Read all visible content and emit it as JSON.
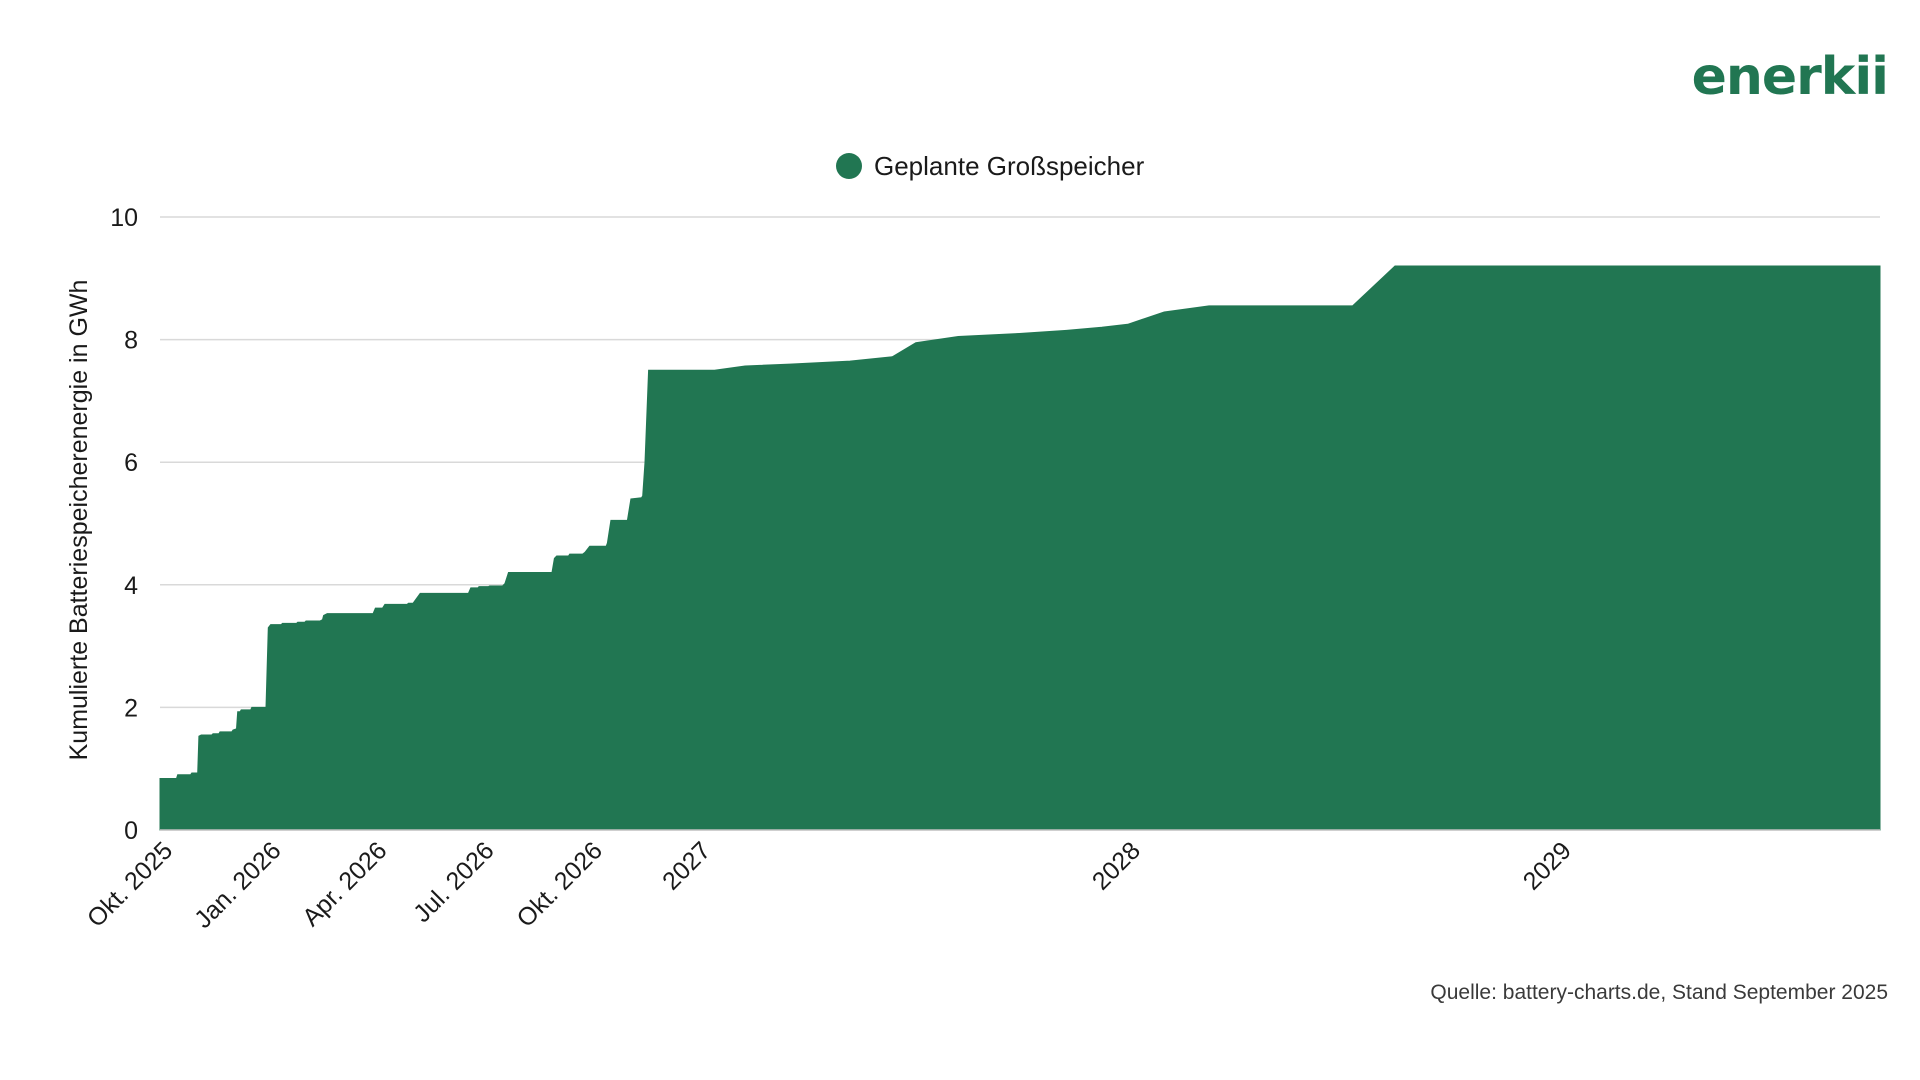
{
  "brand": {
    "logo_text": "enerkii"
  },
  "colors": {
    "series": "#217652",
    "grid": "#d9d9d9",
    "text": "#1a1a1a"
  },
  "source_note": "Quelle: battery-charts.de, Stand September 2025",
  "chart_data": {
    "type": "area",
    "title": "",
    "xlabel": "",
    "ylabel": "Kumulierte Batteriespeicherenergie in GWh",
    "ylim": [
      0,
      10
    ],
    "y_ticks": [
      "0",
      "2",
      "4",
      "6",
      "8",
      "10"
    ],
    "grid": true,
    "legend_position": "top-center",
    "x_ticks": [
      {
        "label": "Okt. 2025",
        "date": "2025-10-01"
      },
      {
        "label": "Jan. 2026",
        "date": "2026-01-01"
      },
      {
        "label": "Apr. 2026",
        "date": "2026-04-01"
      },
      {
        "label": "Jul. 2026",
        "date": "2026-07-01"
      },
      {
        "label": "Okt. 2026",
        "date": "2026-10-01"
      },
      {
        "label": "2027",
        "date": "2027-01-01"
      },
      {
        "label": "2028",
        "date": "2028-01-01"
      },
      {
        "label": "2029",
        "date": "2029-01-01"
      }
    ],
    "series": [
      {
        "name": "Geplante Großspeicher",
        "points": [
          [
            "2025-10-01",
            0.84
          ],
          [
            "2025-10-15",
            0.84
          ],
          [
            "2025-10-16",
            0.9
          ],
          [
            "2025-10-27",
            0.9
          ],
          [
            "2025-10-28",
            0.93
          ],
          [
            "2025-11-02",
            0.93
          ],
          [
            "2025-11-03",
            1.53
          ],
          [
            "2025-11-05",
            1.55
          ],
          [
            "2025-11-14",
            1.55
          ],
          [
            "2025-11-15",
            1.57
          ],
          [
            "2025-11-20",
            1.57
          ],
          [
            "2025-11-21",
            1.6
          ],
          [
            "2025-12-01",
            1.6
          ],
          [
            "2025-12-02",
            1.63
          ],
          [
            "2025-12-05",
            1.65
          ],
          [
            "2025-12-06",
            1.93
          ],
          [
            "2025-12-08",
            1.93
          ],
          [
            "2025-12-09",
            1.96
          ],
          [
            "2025-12-17",
            1.96
          ],
          [
            "2025-12-18",
            2.0
          ],
          [
            "2025-12-30",
            2.0
          ],
          [
            "2026-01-01",
            3.3
          ],
          [
            "2026-01-03",
            3.35
          ],
          [
            "2026-01-12",
            3.35
          ],
          [
            "2026-01-13",
            3.37
          ],
          [
            "2026-01-25",
            3.37
          ],
          [
            "2026-01-26",
            3.39
          ],
          [
            "2026-02-01",
            3.39
          ],
          [
            "2026-02-02",
            3.41
          ],
          [
            "2026-02-14",
            3.41
          ],
          [
            "2026-02-16",
            3.43
          ],
          [
            "2026-02-17",
            3.5
          ],
          [
            "2026-02-20",
            3.53
          ],
          [
            "2026-03-31",
            3.53
          ],
          [
            "2026-04-02",
            3.62
          ],
          [
            "2026-04-08",
            3.62
          ],
          [
            "2026-04-10",
            3.68
          ],
          [
            "2026-04-29",
            3.68
          ],
          [
            "2026-04-30",
            3.7
          ],
          [
            "2026-05-04",
            3.7
          ],
          [
            "2026-05-10",
            3.86
          ],
          [
            "2026-06-20",
            3.86
          ],
          [
            "2026-06-22",
            3.95
          ],
          [
            "2026-06-28",
            3.95
          ],
          [
            "2026-06-29",
            3.97
          ],
          [
            "2026-07-07",
            3.97
          ],
          [
            "2026-07-08",
            3.98
          ],
          [
            "2026-07-19",
            3.98
          ],
          [
            "2026-07-21",
            4.02
          ],
          [
            "2026-07-24",
            4.2
          ],
          [
            "2026-08-30",
            4.2
          ],
          [
            "2026-09-01",
            4.43
          ],
          [
            "2026-09-03",
            4.47
          ],
          [
            "2026-09-13",
            4.47
          ],
          [
            "2026-09-14",
            4.5
          ],
          [
            "2026-09-25",
            4.5
          ],
          [
            "2026-09-27",
            4.53
          ],
          [
            "2026-10-01",
            4.63
          ],
          [
            "2026-10-15",
            4.63
          ],
          [
            "2026-10-16",
            4.68
          ],
          [
            "2026-10-19",
            5.05
          ],
          [
            "2026-11-02",
            5.05
          ],
          [
            "2026-11-05",
            5.4
          ],
          [
            "2026-11-14",
            5.42
          ],
          [
            "2026-11-15",
            5.45
          ],
          [
            "2026-11-17",
            6.0
          ],
          [
            "2026-11-20",
            7.5
          ],
          [
            "2027-01-15",
            7.5
          ],
          [
            "2027-02-10",
            7.57
          ],
          [
            "2027-03-20",
            7.6
          ],
          [
            "2027-05-10",
            7.65
          ],
          [
            "2027-06-15",
            7.72
          ],
          [
            "2027-07-05",
            7.95
          ],
          [
            "2027-08-10",
            8.05
          ],
          [
            "2027-10-01",
            8.1
          ],
          [
            "2027-11-10",
            8.15
          ],
          [
            "2027-12-10",
            8.2
          ],
          [
            "2028-01-01",
            8.25
          ],
          [
            "2028-02-01",
            8.45
          ],
          [
            "2028-03-10",
            8.55
          ],
          [
            "2028-07-10",
            8.55
          ],
          [
            "2028-08-15",
            9.2
          ],
          [
            "2029-10-01",
            9.2
          ]
        ]
      }
    ]
  }
}
